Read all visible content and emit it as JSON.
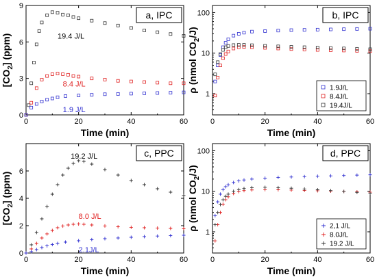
{
  "chart_data": [
    {
      "type": "scatter",
      "panel_label": "a, IPC",
      "ylabel_main": "[CO",
      "ylabel_sub": "2",
      "ylabel_unit": "] (ppm)",
      "xlabel": "Time (min)",
      "xlim": [
        0,
        60
      ],
      "ylim": [
        0,
        9
      ],
      "xticks": [
        "0",
        "20",
        "40",
        "60"
      ],
      "yticks": [
        "0",
        "3",
        "6",
        "9"
      ],
      "yscale": "linear",
      "marker": "square",
      "series": [
        {
          "name": "19.4 J/L",
          "color": "#333333",
          "x": [
            0,
            1,
            2,
            3,
            4,
            5,
            6,
            8,
            10,
            12,
            14,
            16,
            18,
            20,
            25,
            30,
            35,
            40,
            45,
            50,
            55,
            60
          ],
          "y": [
            0,
            0.8,
            2.6,
            4.3,
            5.8,
            6.9,
            7.6,
            8.2,
            8.45,
            8.4,
            8.25,
            8.2,
            8.05,
            7.95,
            7.75,
            7.55,
            7.35,
            7.15,
            6.95,
            6.8,
            6.65,
            6.5
          ]
        },
        {
          "name": "8.4 J/L",
          "color": "#e02020",
          "x": [
            0,
            2,
            4,
            6,
            8,
            10,
            12,
            14,
            16,
            18,
            20,
            25,
            30,
            35,
            40,
            45,
            50,
            55,
            60
          ],
          "y": [
            0,
            1.0,
            2.2,
            2.9,
            3.2,
            3.35,
            3.4,
            3.35,
            3.3,
            3.2,
            3.15,
            3.0,
            2.9,
            2.8,
            2.75,
            2.7,
            2.65,
            2.6,
            2.6
          ]
        },
        {
          "name": "1.9 J/L",
          "color": "#3030d0",
          "x": [
            0,
            2,
            4,
            6,
            8,
            10,
            12,
            15,
            20,
            25,
            30,
            35,
            40,
            45,
            50,
            55,
            60
          ],
          "y": [
            0,
            0.6,
            0.9,
            1.1,
            1.25,
            1.35,
            1.45,
            1.55,
            1.6,
            1.65,
            1.7,
            1.72,
            1.75,
            1.78,
            1.8,
            1.82,
            1.85
          ]
        }
      ],
      "annotations": [
        {
          "text": "19.4 J/L",
          "color": "#000000",
          "x": 12,
          "y": 6.5
        },
        {
          "text": "8.4 J/L",
          "color": "#e02020",
          "x": 14,
          "y": 2.55
        },
        {
          "text": "1.9 J/L",
          "color": "#3030d0",
          "x": 14,
          "y": 0.45
        }
      ]
    },
    {
      "type": "scatter",
      "panel_label": "b, IPC",
      "ylabel_main": "ρ (nmol CO",
      "ylabel_sub": "2",
      "ylabel_unit": "/J)",
      "xlabel": "Time (min)",
      "xlim": [
        0,
        60
      ],
      "ylim": [
        0.3,
        150
      ],
      "xticks": [
        "0",
        "20",
        "40",
        "60"
      ],
      "yticks": [
        {
          "v": 1,
          "t": "1"
        },
        {
          "v": 10,
          "t": "10"
        },
        {
          "v": 100,
          "t": "100"
        }
      ],
      "yscale": "log",
      "marker": "square",
      "series": [
        {
          "name": "1.9J/L",
          "color": "#3030d0",
          "x": [
            1,
            2,
            3,
            4,
            5,
            6,
            8,
            10,
            12,
            15,
            20,
            25,
            30,
            35,
            40,
            45,
            50,
            55,
            60
          ],
          "y": [
            2,
            5,
            9,
            14,
            18,
            22,
            27,
            30,
            32,
            34,
            35,
            36,
            37,
            37.5,
            38,
            38.5,
            39,
            39.5,
            40
          ]
        },
        {
          "name": "8.4J/L",
          "color": "#e02020",
          "x": [
            1,
            2,
            3,
            4,
            5,
            6,
            8,
            10,
            12,
            15,
            20,
            25,
            30,
            35,
            40,
            45,
            50,
            55,
            60
          ],
          "y": [
            0.9,
            2.5,
            5,
            7.5,
            9.5,
            11,
            13,
            14,
            14.2,
            14.0,
            13.5,
            13,
            12.6,
            12.3,
            12,
            11.8,
            11.6,
            11.4,
            11.2
          ]
        },
        {
          "name": "19.4J/L",
          "color": "#333333",
          "x": [
            1,
            2,
            3,
            4,
            5,
            6,
            8,
            10,
            12,
            15,
            20,
            25,
            30,
            35,
            40,
            45,
            50,
            55,
            60
          ],
          "y": [
            3,
            6,
            9.5,
            12,
            14,
            15,
            15.8,
            16,
            16,
            15.7,
            15.2,
            14.7,
            14.3,
            14,
            13.7,
            13.4,
            13.1,
            12.8,
            12.5
          ]
        }
      ],
      "legend": {
        "position": "bottom-right",
        "entries": [
          "1.9J/L",
          "8.4J/L",
          "19.4J/L"
        ]
      }
    },
    {
      "type": "scatter",
      "panel_label": "c, PPC",
      "ylabel_main": "[CO",
      "ylabel_sub": "2",
      "ylabel_unit": "] (ppm)",
      "xlabel": "Time (min)",
      "xlim": [
        0,
        60
      ],
      "ylim": [
        0,
        8
      ],
      "xticks": [
        "0",
        "20",
        "40",
        "60"
      ],
      "yticks": [
        "0",
        "2",
        "4",
        "6"
      ],
      "yscale": "linear",
      "marker": "plus",
      "series": [
        {
          "name": "19.2 J/L",
          "color": "#333333",
          "x": [
            0,
            2,
            4,
            6,
            8,
            10,
            12,
            14,
            16,
            18,
            20,
            22,
            25,
            30,
            35,
            40,
            45,
            50,
            55,
            60
          ],
          "y": [
            0,
            0.6,
            1.5,
            2.5,
            3.4,
            4.3,
            5.0,
            5.7,
            6.2,
            6.55,
            6.75,
            6.7,
            6.5,
            6.1,
            5.7,
            5.3,
            5.0,
            4.7,
            4.45,
            4.2
          ]
        },
        {
          "name": "8.0 J/L",
          "color": "#e02020",
          "x": [
            0,
            2,
            4,
            6,
            8,
            10,
            12,
            14,
            16,
            18,
            20,
            22,
            25,
            30,
            35,
            40,
            45,
            50,
            55,
            60
          ],
          "y": [
            0,
            0.3,
            0.7,
            1.1,
            1.4,
            1.65,
            1.85,
            1.97,
            2.05,
            2.1,
            2.12,
            2.1,
            2.05,
            1.98,
            1.92,
            1.88,
            1.85,
            1.82,
            1.8,
            1.78
          ]
        },
        {
          "name": "2.1J/L",
          "color": "#3030d0",
          "x": [
            0,
            2,
            4,
            6,
            8,
            10,
            12,
            15,
            20,
            25,
            30,
            35,
            40,
            45,
            50,
            55,
            60
          ],
          "y": [
            0,
            0.1,
            0.25,
            0.4,
            0.52,
            0.62,
            0.7,
            0.8,
            0.9,
            0.98,
            1.05,
            1.1,
            1.15,
            1.2,
            1.24,
            1.27,
            1.3
          ]
        }
      ],
      "annotations": [
        {
          "text": "19.2 J/L",
          "color": "#000000",
          "x": 17,
          "y": 7.1
        },
        {
          "text": "8.0 J/L",
          "color": "#e02020",
          "x": 20,
          "y": 2.7
        },
        {
          "text": "2.1J/L",
          "color": "#3030d0",
          "x": 20,
          "y": 0.25
        }
      ]
    },
    {
      "type": "scatter",
      "panel_label": "d, PPC",
      "ylabel_main": "ρ (nmol CO",
      "ylabel_sub": "2",
      "ylabel_unit": "/J)",
      "xlabel": "Time (min)",
      "xlim": [
        0,
        60
      ],
      "ylim": [
        0.3,
        150
      ],
      "xticks": [
        "0",
        "20",
        "40",
        "60"
      ],
      "yticks": [
        {
          "v": 1,
          "t": "1"
        },
        {
          "v": 10,
          "t": "10"
        },
        {
          "v": 100,
          "t": "100"
        }
      ],
      "yscale": "log",
      "marker": "plus",
      "series": [
        {
          "name": "2,1 J/L",
          "color": "#3030d0",
          "x": [
            1,
            2,
            3,
            4,
            5,
            6,
            8,
            10,
            12,
            15,
            20,
            25,
            30,
            35,
            40,
            45,
            50,
            55,
            60
          ],
          "y": [
            2.5,
            5.5,
            8.5,
            11,
            13,
            14.5,
            16.5,
            18,
            19,
            20,
            21,
            22,
            22.5,
            23,
            23.5,
            24,
            24.5,
            25,
            25.5
          ]
        },
        {
          "name": "8.0J/L",
          "color": "#e02020",
          "x": [
            1,
            2,
            3,
            4,
            5,
            6,
            8,
            10,
            12,
            15,
            20,
            25,
            30,
            35,
            40,
            45,
            50,
            55,
            60
          ],
          "y": [
            0.6,
            1.5,
            3,
            4.8,
            6.2,
            7.3,
            8.8,
            9.8,
            10.4,
            10.8,
            11.0,
            10.9,
            10.7,
            10.5,
            10.3,
            10.1,
            9.9,
            9.7,
            9.5
          ]
        },
        {
          "name": "19.2 J/L",
          "color": "#333333",
          "x": [
            1,
            2,
            3,
            4,
            5,
            6,
            8,
            10,
            12,
            15,
            20,
            25,
            30,
            35,
            40,
            45,
            50,
            55,
            60
          ],
          "y": [
            1.5,
            3,
            4.7,
            6.2,
            7.5,
            8.5,
            10,
            11,
            11.7,
            12.3,
            12.5,
            12.3,
            11.9,
            11.4,
            10.9,
            10.4,
            9.9,
            9.4,
            9.0
          ]
        }
      ],
      "legend": {
        "position": "bottom-right",
        "entries": [
          "2,1 J/L",
          "8.0J/L",
          "19.2 J/L"
        ]
      }
    }
  ]
}
